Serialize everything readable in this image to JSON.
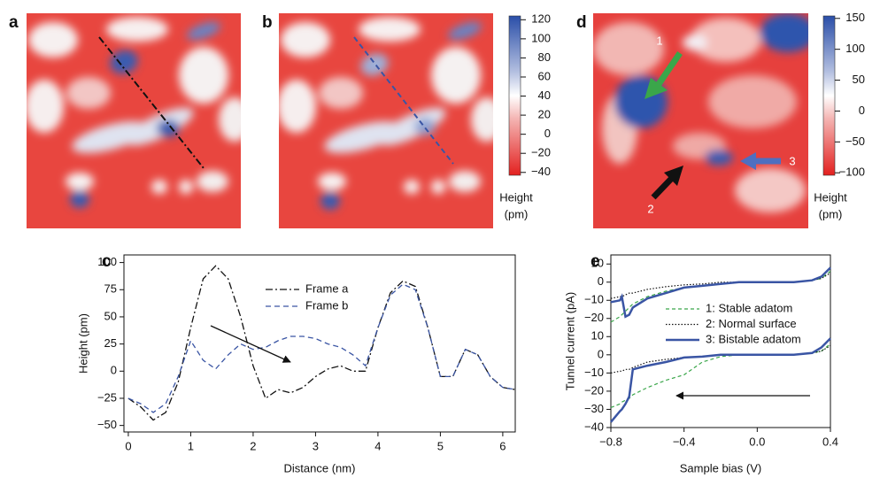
{
  "chart_data": [
    {
      "type": "image",
      "panel": "a"
    },
    {
      "type": "image",
      "panel": "b"
    },
    {
      "type": "colorbar",
      "label": [
        "Height",
        "(pm)"
      ],
      "ylim": [
        -43,
        124
      ],
      "yticks": [
        {
          "value": -40,
          "label": "−40"
        },
        {
          "value": -20,
          "label": "−20"
        },
        0,
        20,
        40,
        60,
        80,
        100,
        120
      ]
    },
    {
      "type": "line",
      "panel": "c",
      "xlabel": "Distance (nm)",
      "ylabel": "Height (pm)",
      "xlim": [
        -0.07,
        6.2
      ],
      "xticks": [
        0,
        1,
        2,
        3,
        4,
        5,
        6
      ],
      "ylim": [
        -56,
        107
      ],
      "yticks": [
        {
          "value": -50,
          "label": "−50"
        },
        {
          "value": -25,
          "label": "−25"
        },
        0,
        25,
        50,
        75,
        100
      ],
      "x": [
        0,
        0.2,
        0.4,
        0.6,
        0.8,
        1.0,
        1.2,
        1.4,
        1.6,
        1.8,
        2.0,
        2.2,
        2.4,
        2.6,
        2.8,
        3.0,
        3.2,
        3.4,
        3.6,
        3.8,
        4.0,
        4.2,
        4.4,
        4.6,
        4.8,
        5.0,
        5.2,
        5.4,
        5.6,
        5.8,
        6.0,
        6.2
      ],
      "series": [
        {
          "name": "Frame a",
          "color": "#111111",
          "dash": "8,3,2,3",
          "values": [
            -25,
            -33,
            -45,
            -38,
            -10,
            40,
            85,
            97,
            85,
            50,
            5,
            -25,
            -17,
            -20,
            -15,
            -5,
            2,
            5,
            0,
            0,
            40,
            72,
            83,
            78,
            40,
            -5,
            -5,
            20,
            15,
            -5,
            -15,
            -17
          ]
        },
        {
          "name": "Frame b",
          "color": "#3a55a4",
          "dash": "6,4",
          "values": [
            -25,
            -30,
            -38,
            -30,
            -5,
            28,
            10,
            2,
            15,
            25,
            20,
            22,
            28,
            32,
            32,
            30,
            25,
            22,
            15,
            5,
            40,
            70,
            80,
            75,
            40,
            -5,
            -5,
            20,
            15,
            -5,
            -15,
            -17
          ]
        }
      ]
    },
    {
      "type": "image",
      "panel": "d",
      "annotations": [
        "1",
        "2",
        "3"
      ]
    },
    {
      "type": "colorbar",
      "label": [
        "Height",
        "(pm)"
      ],
      "ylim": [
        -104,
        154
      ],
      "yticks": [
        {
          "value": -100,
          "label": "−100"
        },
        {
          "value": -50,
          "label": "−50"
        },
        0,
        50,
        100,
        150
      ]
    },
    {
      "type": "line",
      "panel": "e",
      "xlabel": "Sample bias (V)",
      "ylabel": "Tunnel current (pA)",
      "xlim": [
        -0.8,
        0.4
      ],
      "xticks": [
        {
          "value": -0.8,
          "label": "−0.8"
        },
        {
          "value": -0.4,
          "label": "−0.4"
        },
        {
          "value": 0,
          "label": "0.0"
        },
        0.4
      ],
      "ylim": [
        -25,
        15
      ],
      "yticks": [
        10,
        0,
        {
          "value": -10,
          "label": "−10"
        },
        {
          "value": -20,
          "label": "−20"
        }
      ],
      "ylim_lower": [
        -40,
        15
      ],
      "yticks_lower": [
        10,
        0,
        {
          "value": -10,
          "label": "−10"
        },
        {
          "value": -20,
          "label": "−20"
        },
        {
          "value": -30,
          "label": "−30"
        },
        {
          "value": -40,
          "label": "−40"
        }
      ],
      "x": [
        -0.8,
        -0.75,
        -0.74,
        -0.72,
        -0.7,
        -0.68,
        -0.6,
        -0.5,
        -0.4,
        -0.3,
        -0.2,
        -0.1,
        0,
        0.1,
        0.2,
        0.3,
        0.35,
        0.4
      ],
      "series": [
        {
          "name": "1: Stable adatom",
          "color": "#3aa64a",
          "dash": "4,3",
          "width": 1.2,
          "values": [
            -22,
            -19,
            -18,
            -16,
            -14,
            -12,
            -8,
            -5,
            -3,
            -2,
            -1,
            0,
            0,
            0,
            0,
            1,
            2,
            6
          ],
          "values_lower": [
            -29,
            -27,
            -26,
            -25,
            -24,
            -22,
            -18,
            -14,
            -11,
            -4,
            -1,
            0,
            0,
            0,
            0,
            1,
            2,
            6
          ]
        },
        {
          "name": "2: Normal surface",
          "color": "#111111",
          "dash": "1.5,2",
          "width": 1.2,
          "values": [
            -9,
            -8,
            -8,
            -7,
            -6,
            -6,
            -4,
            -2.5,
            -1.5,
            -1,
            0,
            0,
            0,
            0,
            0,
            1,
            2,
            5
          ],
          "values_lower": [
            -10,
            -9,
            -9,
            -8,
            -8,
            -7,
            -4,
            -2.5,
            -1.5,
            -1,
            0,
            0,
            0,
            0,
            0,
            1,
            2,
            5
          ]
        },
        {
          "name": "3: Bistable adatom",
          "color": "#3a55a4",
          "dash": "",
          "width": 2.5,
          "values": [
            -11,
            -10,
            -8,
            -19,
            -18,
            -14,
            -9,
            -6,
            -3,
            -2,
            -1,
            0,
            0,
            0,
            0,
            1,
            3,
            8
          ],
          "values_lower": [
            -37,
            -31,
            -30,
            -27,
            -23,
            -8,
            -6,
            -4,
            -1.5,
            -1,
            0,
            0,
            0,
            0,
            0,
            1,
            4,
            9
          ]
        }
      ]
    }
  ]
}
